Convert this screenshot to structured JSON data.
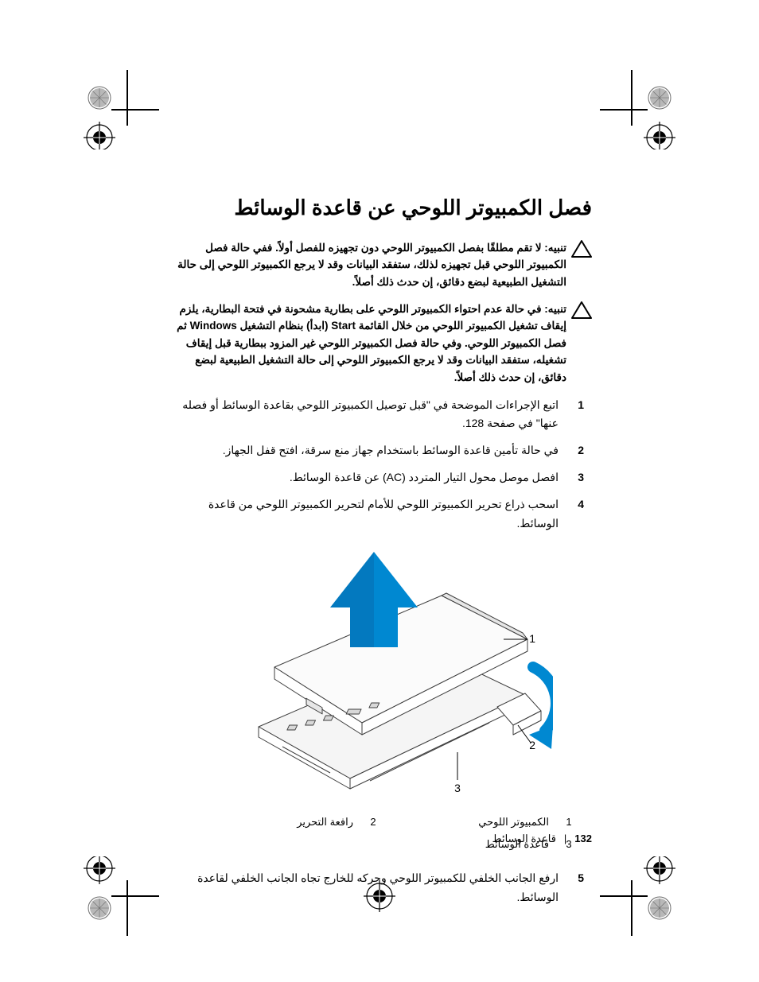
{
  "colors": {
    "text": "#000000",
    "bg": "#ffffff",
    "arrow_blue": "#0088d1",
    "arrow_blue_dark": "#0a5f9e",
    "curve_blue": "#0088d1",
    "line_gray": "#6b6b6b",
    "light_gray": "#cfcfcf",
    "mid_gray": "#a8a8a8",
    "shade_gray": "#e6e6e6"
  },
  "title": "فصل الكمبيوتر اللوحي عن قاعدة الوسائط",
  "warnings": [
    {
      "label": "تنبيه:",
      "text": "لا تقم مطلقًا بفصل الكمبيوتر اللوحي دون تجهيزه للفصل أولاً. ففي حالة فصل الكمبيوتر اللوحي قبل تجهيزه لذلك، ستفقد البيانات وقد لا يرجع الكمبيوتر اللوحي إلى حالة التشغيل الطبيعية لبضع دقائق، إن حدث ذلك أصلاً."
    },
    {
      "label": "تنبيه:",
      "text": "في حالة عدم احتواء الكمبيوتر اللوحي على بطارية مشحونة في فتحة البطارية، يلزم إيقاف تشغيل الكمبيوتر اللوحي من خلال القائمة Start (ابدأ) بنظام التشغيل Windows ثم فصل الكمبيوتر اللوحي. وفي حالة فصل الكمبيوتر اللوحي غير المزود ببطارية قبل إيقاف تشغيله، ستفقد البيانات وقد لا يرجع الكمبيوتر اللوحي إلى حالة التشغيل الطبيعية لبضع دقائق، إن حدث ذلك أصلاً."
    }
  ],
  "steps_a": [
    {
      "num": "1",
      "text": "اتبع الإجراءات الموضحة في \"قبل توصيل الكمبيوتر اللوحي بقاعدة الوسائط أو فصله عنها\" في صفحة 128."
    },
    {
      "num": "2",
      "text": "في حالة تأمين قاعدة الوسائط باستخدام جهاز منع سرقة، افتح قفل الجهاز."
    },
    {
      "num": "3",
      "text": "افصل موصل محول التيار المتردد (AC) عن قاعدة الوسائط."
    },
    {
      "num": "4",
      "text": "اسحب ذراع تحرير الكمبيوتر اللوحي للأمام لتحرير الكمبيوتر اللوحي من قاعدة الوسائط."
    }
  ],
  "callouts": {
    "c1": "1",
    "c2": "2",
    "c3": "3"
  },
  "legend": [
    {
      "num": "1",
      "label": "الكمبيوتر اللوحي"
    },
    {
      "num": "2",
      "label": "رافعة التحرير"
    },
    {
      "num": "3",
      "label": "قاعدة الوسائط"
    }
  ],
  "steps_b": [
    {
      "num": "5",
      "text": "ارفع الجانب الخلفي للكمبيوتر اللوحي وحركه للخارج تجاه الجانب الخلفي لقاعدة الوسائط."
    }
  ],
  "footer": {
    "page": "132",
    "sep": "|",
    "chapter": "قاعدة الوسائط"
  }
}
